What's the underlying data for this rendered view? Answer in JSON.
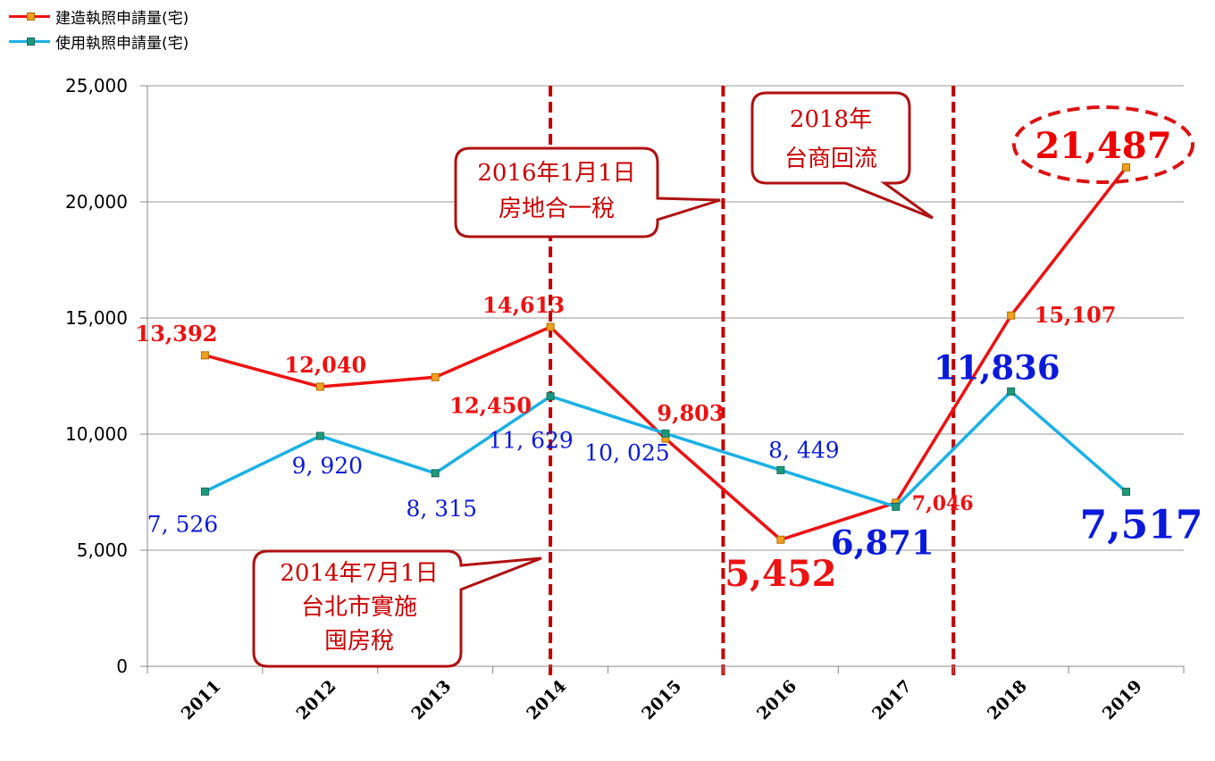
{
  "chart_data": {
    "type": "line",
    "categories": [
      "2011",
      "2012",
      "2013",
      "2014",
      "2015",
      "2016",
      "2017",
      "2018",
      "2019"
    ],
    "series": [
      {
        "name": "建造執照申請量(宅)",
        "color": "#ee1111",
        "values": [
          13392,
          12040,
          12450,
          14613,
          9803,
          5452,
          7046,
          15107,
          21487
        ],
        "labels": [
          "13,392",
          "12,040",
          "12,450",
          "14,613",
          "9,803",
          "5,452",
          "7,046",
          "15,107",
          "21,487"
        ]
      },
      {
        "name": "使用執照申請量(宅)",
        "color": "#19b1e6",
        "values": [
          7526,
          9920,
          8315,
          11629,
          10025,
          8449,
          6871,
          11836,
          7517
        ],
        "labels": [
          "7, 526",
          "9, 920",
          "8, 315",
          "11, 629",
          "10, 025",
          "8, 449",
          "6,871",
          "11,836",
          "7,517"
        ]
      }
    ],
    "ylim": [
      0,
      25000
    ],
    "yticks": [
      "0",
      "5,000",
      "10,000",
      "15,000",
      "20,000",
      "25,000"
    ],
    "grid": true,
    "legend_position": "top-left",
    "annotations": [
      {
        "text": [
          "2014年7月1日",
          "台北市實施",
          "囤房稅"
        ]
      },
      {
        "text": [
          "2016年1月1日",
          "房地合一稅"
        ]
      },
      {
        "text": [
          "2018年",
          "台商回流"
        ]
      }
    ]
  }
}
